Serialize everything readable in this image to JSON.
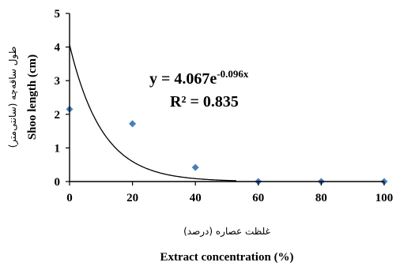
{
  "chart_data": {
    "type": "scatter",
    "x": [
      0,
      20,
      40,
      60,
      80,
      100
    ],
    "y": [
      2.15,
      1.72,
      0.42,
      0.0,
      0.0,
      0.0
    ],
    "xlim": [
      0,
      100
    ],
    "ylim": [
      0,
      5
    ],
    "xticks": [
      "0",
      "20",
      "40",
      "60",
      "80",
      "100"
    ],
    "yticks": [
      "0",
      "1",
      "2",
      "3",
      "4",
      "5"
    ],
    "xlabel": "Extract concentration (%)",
    "xlabel_fa": "غلظت عصاره (درصد)",
    "ylabel": "Shoo length (cm)",
    "ylabel_fa": "طول ساقه‌چه (سانتی‌متر)",
    "trendline": {
      "type": "exponential",
      "a": 4.067,
      "b": -0.096,
      "x_end": 53,
      "equation_main": "y = 4.067e",
      "equation_exp": "-0.096x",
      "r2_label": "R² = 0.835"
    },
    "marker_color": "#4a7ebb",
    "line_color": "#000000"
  }
}
